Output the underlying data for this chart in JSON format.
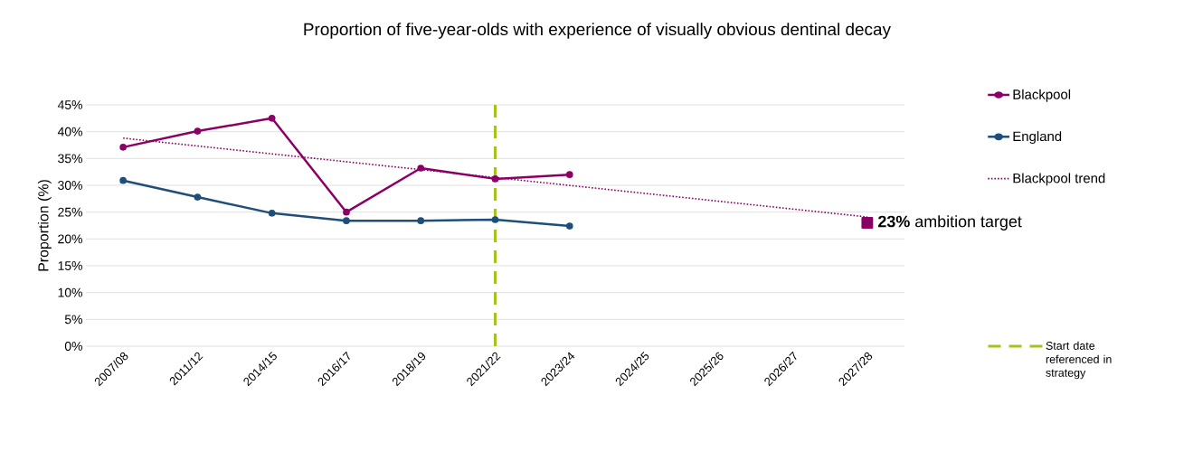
{
  "chart_data": {
    "type": "line",
    "title": "Proportion of five-year-olds with experience of visually obvious dentinal decay",
    "ylabel": "Proportion (%)",
    "categories": [
      "2007/08",
      "2011/12",
      "2014/15",
      "2016/17",
      "2018/19",
      "2021/22",
      "2023/24",
      "2024/25",
      "2025/26",
      "2026/27",
      "2027/28"
    ],
    "series": [
      {
        "name": "Blackpool",
        "color": "#8b0066",
        "values": [
          37.1,
          40.1,
          42.5,
          25.0,
          33.2,
          31.2,
          32.0,
          null,
          null,
          null,
          null
        ]
      },
      {
        "name": "England",
        "color": "#1f4e79",
        "values": [
          30.9,
          27.8,
          24.8,
          23.4,
          23.4,
          23.6,
          22.4,
          null,
          null,
          null,
          null
        ]
      },
      {
        "name": "Blackpool trend",
        "color": "#8b0066",
        "marker": "none",
        "line_style": "dotted",
        "x": [
          "2007/08",
          "2027/28"
        ],
        "values": [
          38.8,
          24.1
        ]
      },
      {
        "type": "scatter",
        "color": "#8b0066",
        "marker": "square",
        "x": [
          "2027/28"
        ],
        "values": [
          23
        ]
      }
    ],
    "ylim": [
      0,
      45
    ],
    "yticks": [
      {
        "value": 0,
        "label": "0%"
      },
      {
        "value": 5,
        "label": "5%"
      },
      {
        "value": 10,
        "label": "10%"
      },
      {
        "value": 15,
        "label": "15%"
      },
      {
        "value": 20,
        "label": "20%"
      },
      {
        "value": 25,
        "label": "25%"
      },
      {
        "value": 30,
        "label": "30%"
      },
      {
        "value": 35,
        "label": "35%"
      },
      {
        "value": 40,
        "label": "40%"
      },
      {
        "value": 45,
        "label": "45%"
      }
    ],
    "ref_lines": [
      {
        "axis": "x",
        "value": "2021/22",
        "label": "Start date referenced in strategy",
        "color": "#a5c31c",
        "line_style": "dashed"
      }
    ],
    "annotations": [
      {
        "text": "**23%** ambition target",
        "x": "2027/28",
        "y": 23
      }
    ],
    "grid": "y",
    "legend": "right",
    "marker": "circle",
    "line_style": "solid"
  }
}
